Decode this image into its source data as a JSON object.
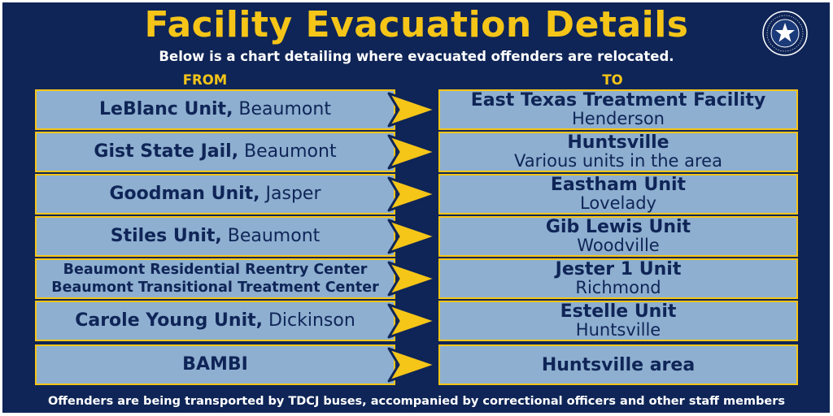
{
  "title": "Facility Evacuation Details",
  "subtitle": "Below is a chart detailing where evacuated offenders are relocated.",
  "columns": {
    "from": "FROM",
    "to": "TO"
  },
  "seal": {
    "ring_text": "TEXAS DEPARTMENT OF CRIMINAL JUSTICE"
  },
  "colors": {
    "background": "#0f2557",
    "accent": "#f5c518",
    "cell": "#8eafd0",
    "text": "#0f2557"
  },
  "rows": [
    {
      "from_name": "LeBlanc Unit,",
      "from_city": " Beaumont",
      "to_name": "East Texas Treatment Facility",
      "to_city": "Henderson"
    },
    {
      "from_name": "Gist State Jail,",
      "from_city": " Beaumont",
      "to_name": "Huntsville",
      "to_city": "Various units in the area"
    },
    {
      "from_name": "Goodman Unit,",
      "from_city": " Jasper",
      "to_name": "Eastham Unit",
      "to_city": "Lovelady"
    },
    {
      "from_name": "Stiles Unit,",
      "from_city": " Beaumont",
      "to_name": "Gib Lewis Unit",
      "to_city": "Woodville"
    },
    {
      "from_line1": "Beaumont Residential Reentry Center",
      "from_line2": "Beaumont Transitional Treatment Center",
      "to_name": "Jester 1 Unit",
      "to_city": "Richmond"
    },
    {
      "from_name": "Carole Young Unit,",
      "from_city": " Dickinson",
      "to_name": "Estelle Unit",
      "to_city": "Huntsville"
    },
    {
      "from_name": "BAMBI",
      "from_city": "",
      "to_name": "Huntsville area",
      "to_city": ""
    }
  ],
  "footer": "Offenders are being transported by TDCJ buses, accompanied by correctional officers and other staff members"
}
